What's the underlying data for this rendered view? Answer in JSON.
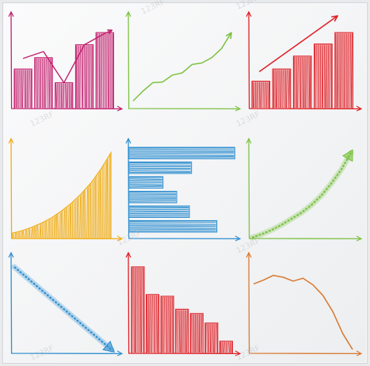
{
  "watermark": {
    "text": "123RF"
  },
  "colors": {
    "background": "#f3f4f5",
    "magenta": "#c21f6e",
    "green": "#7cc242",
    "red": "#de1f26",
    "orange": "#f0ad16",
    "blue": "#2f8fd0",
    "orange_brown": "#d9792f"
  },
  "chart_data": [
    {
      "type": "bar",
      "orientation": "vertical",
      "overlay": "line",
      "categories": [
        "1",
        "2",
        "3",
        "4",
        "5"
      ],
      "values": [
        5.2,
        6.7,
        3.4,
        8.4,
        10.0
      ],
      "line_values": [
        6.6,
        7.5,
        3.4,
        8.4,
        9.9
      ],
      "line_arrow": true,
      "ylim": [
        0,
        12
      ],
      "color": "#c21f6e",
      "axis_color": "#c21f6e",
      "grid": false,
      "style": "hand-drawn"
    },
    {
      "type": "line",
      "x": [
        0,
        1,
        2,
        3,
        4,
        5,
        6,
        7,
        8,
        9,
        10
      ],
      "values": [
        1.0,
        2.3,
        3.4,
        3.5,
        4.4,
        4.7,
        5.8,
        6.0,
        6.7,
        7.9,
        10.0
      ],
      "arrow": true,
      "ylim": [
        0,
        12
      ],
      "color": "#7cc242",
      "axis_color": "#7cc242",
      "grid": false,
      "style": "hand-drawn"
    },
    {
      "type": "bar",
      "orientation": "vertical",
      "overlay": "trend-arrow",
      "categories": [
        "1",
        "2",
        "3",
        "4",
        "5"
      ],
      "values": [
        3.6,
        5.2,
        6.9,
        8.5,
        10.0
      ],
      "ylim": [
        0,
        12
      ],
      "color": "#de1f26",
      "axis_color": "#de1f26",
      "grid": false,
      "style": "hand-drawn"
    },
    {
      "type": "area",
      "x": [
        0,
        1,
        2,
        3,
        4,
        5,
        6,
        7,
        8,
        9,
        10
      ],
      "values": [
        0.6,
        0.9,
        1.3,
        1.8,
        2.4,
        3.2,
        4.1,
        5.2,
        6.5,
        8.1,
        10.0
      ],
      "ylim": [
        0,
        11
      ],
      "color": "#f0ad16",
      "axis_color": "#f0ad16",
      "grid": false,
      "style": "hand-drawn"
    },
    {
      "type": "bar",
      "orientation": "horizontal",
      "categories": [
        "1",
        "2",
        "3",
        "4",
        "5",
        "6"
      ],
      "values": [
        10.0,
        5.9,
        3.2,
        4.5,
        5.7,
        8.3
      ],
      "xlim": [
        0,
        10.5
      ],
      "color": "#2f8fd0",
      "axis_color": "#2f8fd0",
      "grid": false,
      "style": "hand-drawn"
    },
    {
      "type": "line",
      "variant": "arrow-growth",
      "x": [
        0,
        1,
        2,
        3,
        4,
        5,
        6,
        7,
        8,
        9,
        10
      ],
      "values": [
        0.1,
        0.5,
        1.0,
        1.6,
        2.3,
        3.0,
        3.9,
        5.0,
        6.4,
        8.0,
        10.0
      ],
      "arrow": true,
      "ylim": [
        0,
        11
      ],
      "color": "#7cc242",
      "axis_color": "#7cc242",
      "grid": false,
      "style": "hand-drawn"
    },
    {
      "type": "line",
      "variant": "arrow-decline",
      "x": [
        0,
        10
      ],
      "values": [
        10.0,
        0.4
      ],
      "arrow": true,
      "ylim": [
        0,
        11
      ],
      "color": "#2f8fd0",
      "axis_color": "#2f8fd0",
      "grid": false,
      "style": "hand-drawn"
    },
    {
      "type": "bar",
      "orientation": "vertical",
      "categories": [
        "1",
        "2",
        "3",
        "4",
        "5",
        "6",
        "7"
      ],
      "values": [
        10.0,
        6.8,
        6.6,
        5.1,
        4.6,
        3.5,
        1.4
      ],
      "ylim": [
        0,
        11
      ],
      "color": "#de1f26",
      "axis_color": "#de1f26",
      "grid": false,
      "style": "hand-drawn"
    },
    {
      "type": "line",
      "x": [
        0,
        1,
        2,
        3,
        4,
        5,
        6,
        7,
        8,
        9,
        10
      ],
      "values": [
        7.3,
        7.7,
        8.2,
        8.0,
        7.6,
        7.9,
        7.2,
        6.1,
        4.4,
        2.1,
        0.4
      ],
      "ylim": [
        0,
        10
      ],
      "color": "#d9792f",
      "axis_color": "#d9792f",
      "grid": false,
      "style": "hand-drawn"
    }
  ]
}
